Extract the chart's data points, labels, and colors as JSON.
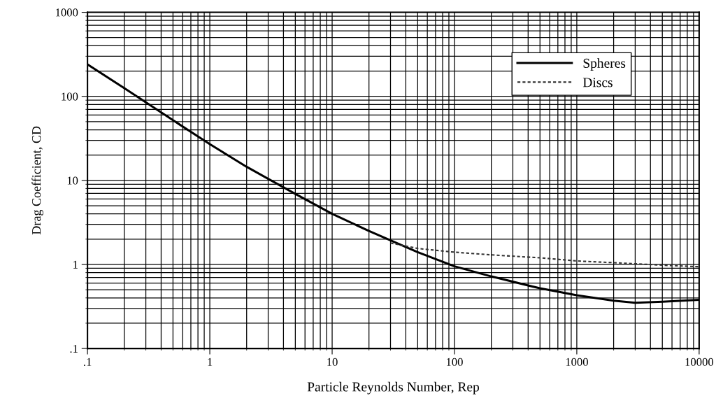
{
  "chart_data": {
    "type": "line",
    "xlabel": "Particle Reynolds Number, Rep",
    "ylabel": "Drag Coefficient, CD",
    "log": "xy",
    "xlim": [
      0.1,
      10000
    ],
    "ylim": [
      0.1,
      1000
    ],
    "xticks": [
      {
        "value": 0.1,
        "label": ".1"
      },
      1,
      10,
      100,
      1000,
      10000
    ],
    "yticks": [
      {
        "value": 0.1,
        "label": ".1"
      },
      1,
      10,
      100,
      1000
    ],
    "grid": true,
    "legend": "top right",
    "series": [
      {
        "name": "Spheres",
        "color": "#000000",
        "line_style": "solid",
        "x": [
          0.1,
          0.2,
          0.5,
          1,
          2,
          5,
          10,
          20,
          50,
          100,
          200,
          500,
          1000,
          2000,
          3000,
          5000,
          10000
        ],
        "values": [
          240,
          125,
          52,
          27,
          14.5,
          6.9,
          4.0,
          2.5,
          1.4,
          0.95,
          0.72,
          0.52,
          0.43,
          0.37,
          0.35,
          0.36,
          0.38
        ]
      },
      {
        "name": "Discs",
        "color": "#333333",
        "line_style": "dotted",
        "x": [
          30,
          50,
          100,
          200,
          500,
          1000,
          2000,
          5000,
          10000
        ],
        "values": [
          1.8,
          1.55,
          1.4,
          1.3,
          1.2,
          1.1,
          1.05,
          0.98,
          0.94
        ]
      }
    ]
  }
}
